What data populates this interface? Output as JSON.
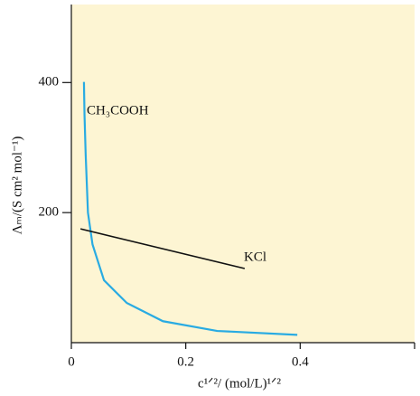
{
  "chart_data": {
    "type": "line",
    "x_label": "c¹ᐟ²/ (mol/L)¹ᐟ²",
    "y_label": "Λₘ/(S cm² mol⁻¹)",
    "xlim": [
      0,
      0.6
    ],
    "ylim": [
      0,
      520
    ],
    "xticks": [
      0,
      0.2,
      0.4
    ],
    "yticks": [
      200,
      400
    ],
    "background": "#fdf5d3",
    "series": [
      {
        "name": "CH₃COOH",
        "color": "#29abe2",
        "x": [
          0.022,
          0.023,
          0.025,
          0.029,
          0.037,
          0.057,
          0.097,
          0.16,
          0.255,
          0.395
        ],
        "values": [
          401,
          350,
          290,
          200,
          151,
          96,
          61,
          33,
          18,
          12
        ]
      },
      {
        "name": "KCl",
        "color": "#111111",
        "x": [
          0.016,
          0.303
        ],
        "values": [
          175,
          114
        ]
      }
    ]
  }
}
